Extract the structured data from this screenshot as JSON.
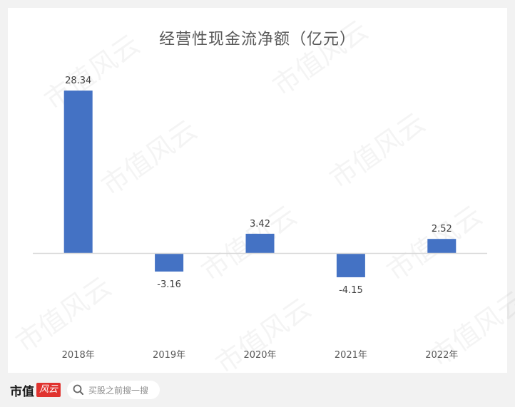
{
  "chart_data": {
    "type": "bar",
    "title": "经营性现金流净额（亿元）",
    "categories": [
      "2018年",
      "2019年",
      "2020年",
      "2021年",
      "2022年"
    ],
    "values": [
      28.34,
      -3.16,
      3.42,
      -4.15,
      2.52
    ],
    "data_labels": [
      "28.34",
      "-3.16",
      "3.42",
      "-4.15",
      "2.52"
    ],
    "xlabel": "",
    "ylabel": "",
    "ylim": [
      -12,
      30
    ],
    "grid": false,
    "legend": "none",
    "bar_color": "#4472c4",
    "axis_color": "#d9d9d9"
  },
  "watermark_text": "市值风云",
  "footer": {
    "brand": "市值",
    "brand_mark": "风云",
    "search_placeholder": "买股之前搜一搜"
  }
}
